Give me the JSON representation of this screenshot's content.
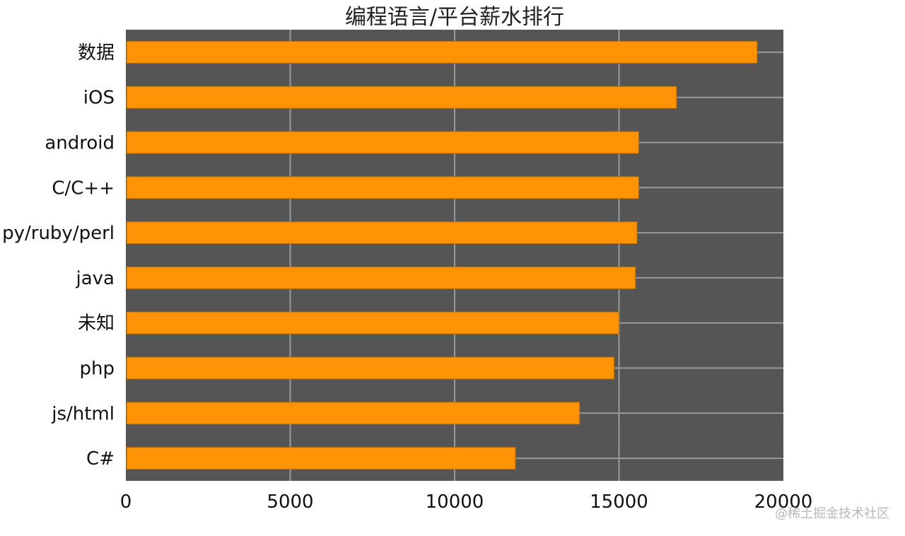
{
  "watermark": "@稀土掘金技术社区",
  "colors": {
    "plot_background": "#555555",
    "bar_fill": "#ff9305",
    "bar_stroke": "#b56a00",
    "grid": "#9a9a9a"
  },
  "chart_data": {
    "type": "bar",
    "orientation": "horizontal",
    "title": "编程语言/平台薪水排行",
    "categories": [
      "数据",
      "iOS",
      "android",
      "C/C++",
      "py/ruby/perl",
      "java",
      "未知",
      "php",
      "js/html",
      "C#"
    ],
    "values": [
      19200,
      16750,
      15600,
      15600,
      15550,
      15500,
      15000,
      14850,
      13800,
      11850
    ],
    "xlim": [
      0,
      20000
    ],
    "xticks": [
      "0",
      "5000",
      "10000",
      "15000",
      "20000"
    ],
    "xlabel": "",
    "ylabel": "",
    "grid": true,
    "legend": "none"
  }
}
